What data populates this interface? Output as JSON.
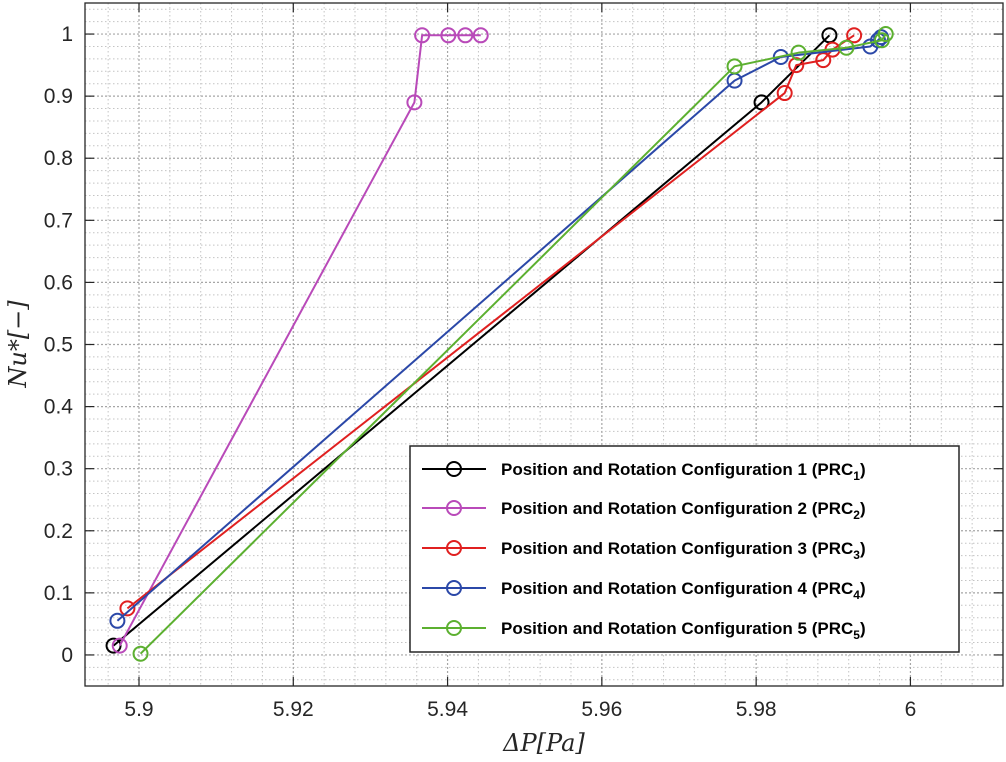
{
  "chart_data": {
    "type": "line",
    "xlabel": "ΔP[Pa]",
    "ylabel": "Nu*[−]",
    "xlim": [
      5.893,
      6.012
    ],
    "ylim": [
      -0.05,
      1.05
    ],
    "xticks": [
      5.9,
      5.92,
      5.94,
      5.96,
      5.98,
      6
    ],
    "xtick_labels": [
      "5.9",
      "5.92",
      "5.94",
      "5.96",
      "5.98",
      "6"
    ],
    "yticks": [
      0,
      0.1,
      0.2,
      0.3,
      0.4,
      0.5,
      0.6,
      0.7,
      0.8,
      0.9,
      1
    ],
    "ytick_labels": [
      "0",
      "0.1",
      "0.2",
      "0.3",
      "0.4",
      "0.5",
      "0.6",
      "0.7",
      "0.8",
      "0.9",
      "1"
    ],
    "grid": true,
    "grid_minor": true,
    "legend_position": "bottom-right",
    "series": [
      {
        "name": "Position and Rotation Configuration 1 (PRC",
        "subscript": "1",
        "suffix": ")",
        "color": "#000000",
        "x": [
          5.8967,
          5.9807,
          5.9895
        ],
        "y": [
          0.015,
          0.89,
          0.998
        ]
      },
      {
        "name": "Position and Rotation Configuration 2 (PRC",
        "subscript": "2",
        "suffix": ")",
        "color": "#b94ab9",
        "x": [
          5.8975,
          5.9357,
          5.9367,
          5.9401,
          5.9423,
          5.9443
        ],
        "y": [
          0.015,
          0.89,
          0.998,
          0.998,
          0.998,
          0.998
        ]
      },
      {
        "name": "Position and Rotation Configuration 3 (PRC",
        "subscript": "3",
        "suffix": ")",
        "color": "#e02020",
        "x": [
          5.8985,
          5.9837,
          5.9852,
          5.9887,
          5.9899,
          5.9927
        ],
        "y": [
          0.075,
          0.905,
          0.95,
          0.958,
          0.975,
          0.998
        ]
      },
      {
        "name": "Position and Rotation Configuration 4 (PRC",
        "subscript": "4",
        "suffix": ")",
        "color": "#2b48a8",
        "x": [
          5.8972,
          5.9772,
          5.9832,
          5.9948,
          5.9958,
          5.9962
        ],
        "y": [
          0.055,
          0.925,
          0.963,
          0.98,
          0.99,
          0.995
        ]
      },
      {
        "name": "Position and Rotation Configuration 5 (PRC",
        "subscript": "5",
        "suffix": ")",
        "color": "#5cb030",
        "x": [
          5.9002,
          5.9772,
          5.9855,
          5.9917,
          5.9963,
          5.9968
        ],
        "y": [
          0.002,
          0.948,
          0.97,
          0.978,
          0.99,
          1.0
        ]
      }
    ]
  }
}
